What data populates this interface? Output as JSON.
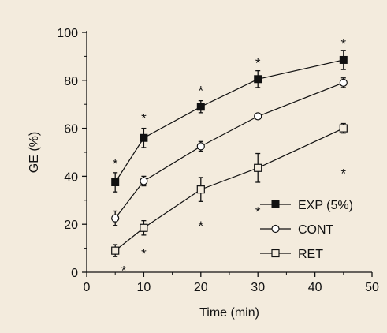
{
  "chart_data": {
    "type": "line",
    "title": "",
    "xlabel": "Time (min)",
    "ylabel": "GE (%)",
    "xlim": [
      0,
      50
    ],
    "ylim": [
      0,
      100
    ],
    "xticks": [
      0,
      10,
      20,
      30,
      40,
      50
    ],
    "yticks": [
      0,
      20,
      40,
      60,
      80,
      100
    ],
    "x": [
      5,
      10,
      20,
      30,
      45
    ],
    "grid": false,
    "legend_position": "bottom-right",
    "colors": {
      "background": "#f3ebdd",
      "ink": "#111111"
    },
    "series": [
      {
        "name": "EXP (5%)",
        "marker": "filled-square",
        "values": [
          37.5,
          56,
          69,
          80.5,
          88.5
        ],
        "errors": [
          4,
          4,
          2.5,
          3.5,
          4
        ],
        "significance": [
          {
            "x": 5,
            "y": 46,
            "label": "*"
          },
          {
            "x": 10,
            "y": 65,
            "label": "*"
          },
          {
            "x": 20,
            "y": 76.5,
            "label": "*"
          },
          {
            "x": 30,
            "y": 88,
            "label": "*"
          },
          {
            "x": 45,
            "y": 96,
            "label": "*"
          }
        ]
      },
      {
        "name": "CONT",
        "marker": "open-circle",
        "values": [
          22.5,
          38,
          52.5,
          65,
          79
        ],
        "errors": [
          3,
          2,
          2,
          1,
          2
        ],
        "significance": []
      },
      {
        "name": "RET",
        "marker": "open-square",
        "values": [
          9,
          18.5,
          34.5,
          43.5,
          60
        ],
        "errors": [
          2.5,
          3,
          5,
          6,
          2
        ],
        "significance": [
          {
            "x": 6.5,
            "y": 1.5,
            "label": "*"
          },
          {
            "x": 10,
            "y": 8.5,
            "label": "*"
          },
          {
            "x": 20,
            "y": 20,
            "label": "*"
          },
          {
            "x": 30,
            "y": 26,
            "label": "*"
          },
          {
            "x": 45,
            "y": 42,
            "label": "*"
          }
        ]
      }
    ]
  }
}
